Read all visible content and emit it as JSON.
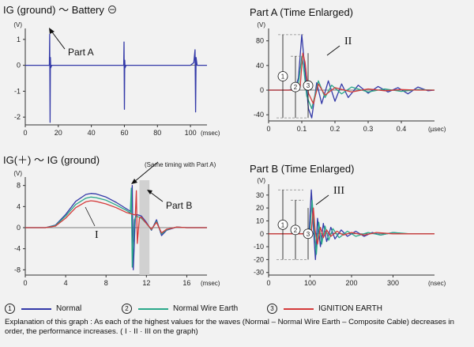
{
  "colors": {
    "normal": "#3339a8",
    "wire": "#2aa88a",
    "ignition": "#d43a3a",
    "axis": "#333333",
    "guide": "#888888"
  },
  "legend": [
    {
      "num": "1",
      "label": "Normal",
      "color": "#3339a8"
    },
    {
      "num": "2",
      "label": "Normal Wire Earth",
      "color": "#2aa88a"
    },
    {
      "num": "3",
      "label": "IGNITION EARTH",
      "color": "#d43a3a"
    }
  ],
  "explanation": "Explanation of this graph : As each of the highest values for the waves (Normal – Normal Wire Earth – Composite Cable) decreases in order, the performance increases. ( I · II · III on the graph)",
  "chart_data": [
    {
      "id": "ig-battery",
      "type": "line",
      "title": "IG (ground) ～ Battery ⊖",
      "ylabel_unit": "(V)",
      "xlabel_unit": "(msec)",
      "xlim": [
        0,
        110
      ],
      "ylim": [
        -2.3,
        1.3
      ],
      "xticks": [
        0,
        20,
        40,
        60,
        80,
        100
      ],
      "yticks": [
        1,
        0,
        -1,
        -2
      ],
      "annotation": "Part A",
      "series": [
        {
          "name": "Normal",
          "x": [
            0,
            14.6,
            14.8,
            15.0,
            15.2,
            15.4,
            16,
            59.6,
            59.8,
            60.0,
            60.2,
            60.4,
            61,
            100,
            102,
            102.8,
            103.1,
            103.4,
            104,
            110
          ],
          "y": [
            0,
            0,
            1.2,
            -2.2,
            0.3,
            -0.1,
            0,
            0,
            0.9,
            -1.7,
            0.2,
            -0.1,
            0,
            0,
            0.1,
            0.6,
            -1.8,
            0.3,
            0,
            0
          ]
        }
      ]
    },
    {
      "id": "part-a",
      "type": "line",
      "title": "Part A  (Time Enlarged)",
      "ylabel_unit": "(V)",
      "xlabel_unit": "(µsec)",
      "xlim": [
        0,
        0.5
      ],
      "ylim": [
        -50,
        95
      ],
      "xticks": [
        0,
        0.1,
        0.2,
        0.3,
        0.4
      ],
      "yticks": [
        80,
        40,
        0,
        -40
      ],
      "annotation": "II",
      "levels": [
        "1",
        "2",
        "3"
      ],
      "series": [
        {
          "name": "Normal",
          "x": [
            0,
            0.06,
            0.08,
            0.09,
            0.1,
            0.11,
            0.12,
            0.13,
            0.145,
            0.16,
            0.18,
            0.2,
            0.22,
            0.24,
            0.27,
            0.3,
            0.33,
            0.36,
            0.39,
            0.42,
            0.45,
            0.48,
            0.5
          ],
          "y": [
            0,
            0,
            2,
            20,
            90,
            30,
            -30,
            -45,
            12,
            -22,
            15,
            -18,
            10,
            -12,
            8,
            -5,
            6,
            -3,
            4,
            -6,
            5,
            -1,
            0
          ]
        },
        {
          "name": "Normal Wire Earth",
          "x": [
            0,
            0.07,
            0.09,
            0.1,
            0.105,
            0.115,
            0.13,
            0.15,
            0.17,
            0.19,
            0.22,
            0.25,
            0.3,
            0.35,
            0.4,
            0.45,
            0.5
          ],
          "y": [
            0,
            0,
            10,
            55,
            40,
            -10,
            -30,
            15,
            -12,
            8,
            -6,
            5,
            -3,
            2,
            -2,
            1,
            0
          ]
        },
        {
          "name": "IGNITION EARTH",
          "x": [
            0,
            0.08,
            0.095,
            0.103,
            0.11,
            0.12,
            0.135,
            0.15,
            0.17,
            0.2,
            0.25,
            0.3,
            0.35,
            0.4,
            0.45,
            0.5
          ],
          "y": [
            0,
            0,
            5,
            60,
            45,
            -5,
            -22,
            10,
            -8,
            4,
            -3,
            2,
            -1,
            1,
            0,
            0
          ]
        }
      ]
    },
    {
      "id": "ig-plus-ground",
      "type": "line",
      "title": "IG(＋) ～ IG (ground)",
      "ylabel_unit": "(V)",
      "xlabel_unit": "(msec)",
      "xlim": [
        0,
        18
      ],
      "ylim": [
        -9,
        9
      ],
      "xticks": [
        0,
        4,
        8,
        12,
        16
      ],
      "yticks": [
        8,
        4,
        0,
        -4,
        -8
      ],
      "annotation": "Part B",
      "note": "(Same timing with Part A)",
      "curve_label": "I",
      "series": [
        {
          "name": "Normal",
          "x": [
            0,
            2,
            3,
            4,
            5,
            6,
            6.5,
            7,
            8,
            9,
            10,
            10.5,
            10.6,
            10.7,
            10.9,
            11,
            11.5,
            12,
            12.5,
            13,
            13.5,
            14,
            14.5,
            15,
            16,
            17,
            18
          ],
          "y": [
            0,
            0,
            0.5,
            2.5,
            5,
            6.3,
            6.5,
            6.4,
            5.8,
            4.8,
            3.6,
            3.0,
            8,
            -8,
            2,
            2.5,
            2.2,
            1.0,
            -0.5,
            1.5,
            -1.5,
            -0.5,
            -0.2,
            0.1,
            0,
            0,
            0
          ]
        },
        {
          "name": "Normal Wire Earth",
          "x": [
            0,
            2,
            3,
            4,
            5,
            6,
            6.5,
            7,
            8,
            9,
            10,
            10.4,
            10.5,
            10.6,
            10.8,
            11,
            11.5,
            12,
            12.5,
            13,
            13.5,
            14,
            14.5,
            15,
            16,
            17,
            18
          ],
          "y": [
            0,
            0,
            0.4,
            2.2,
            4.4,
            5.6,
            5.8,
            5.7,
            5.2,
            4.3,
            3.3,
            2.8,
            7.5,
            -7.5,
            1.5,
            2.2,
            1.8,
            0.8,
            -0.4,
            1.2,
            -1.2,
            -0.4,
            -0.1,
            0.1,
            0,
            0,
            0
          ]
        },
        {
          "name": "IGNITION EARTH",
          "x": [
            0,
            2,
            3,
            4,
            5,
            6,
            6.5,
            7,
            8,
            9,
            10,
            10.9,
            11,
            11.1,
            11.3,
            11.5,
            12,
            12.5,
            13,
            13.5,
            14,
            14.5,
            15,
            16,
            17,
            18
          ],
          "y": [
            0,
            0,
            0.3,
            1.8,
            3.8,
            4.9,
            5.1,
            5.0,
            4.5,
            3.8,
            2.9,
            2.4,
            7,
            -3,
            1.8,
            2.0,
            0.8,
            -0.3,
            1.0,
            -1.0,
            -0.3,
            -0.1,
            0.1,
            0,
            0,
            0
          ]
        }
      ]
    },
    {
      "id": "part-b",
      "type": "line",
      "title": "Part B  (Time Enlarged)",
      "ylabel_unit": "(V)",
      "xlabel_unit": "(nsec)",
      "xlim": [
        0,
        400
      ],
      "ylim": [
        -32,
        36
      ],
      "xticks": [
        0,
        100,
        200,
        300
      ],
      "yticks": [
        30,
        20,
        10,
        0,
        -10,
        -20,
        -30
      ],
      "annotation": "III",
      "levels": [
        "1",
        "2",
        "3"
      ],
      "series": [
        {
          "name": "Normal",
          "x": [
            0,
            90,
            98,
            103,
            108,
            113,
            118,
            125,
            132,
            140,
            150,
            160,
            175,
            190,
            210,
            230,
            250,
            270,
            300,
            330,
            360,
            400
          ],
          "y": [
            0,
            0,
            3,
            34,
            5,
            -20,
            12,
            -10,
            8,
            -6,
            5,
            -4,
            3,
            -2,
            2,
            -2,
            1,
            -1,
            1,
            0,
            0,
            0
          ]
        },
        {
          "name": "Normal Wire Earth",
          "x": [
            0,
            92,
            100,
            105,
            110,
            115,
            121,
            128,
            136,
            145,
            155,
            170,
            190,
            210,
            240,
            270,
            300,
            340,
            400
          ],
          "y": [
            0,
            0,
            3,
            26,
            4,
            -16,
            9,
            -8,
            6,
            -5,
            4,
            -3,
            2,
            -2,
            1,
            -1,
            1,
            0,
            0
          ]
        },
        {
          "name": "IGNITION EARTH",
          "x": [
            0,
            95,
            103,
            108,
            112,
            118,
            125,
            132,
            140,
            150,
            165,
            180,
            200,
            230,
            260,
            300,
            340,
            400
          ],
          "y": [
            0,
            0,
            2,
            20,
            3,
            -8,
            5,
            -3,
            3,
            -2,
            2,
            -1,
            1,
            -1,
            1,
            0,
            0,
            0
          ]
        }
      ]
    }
  ]
}
